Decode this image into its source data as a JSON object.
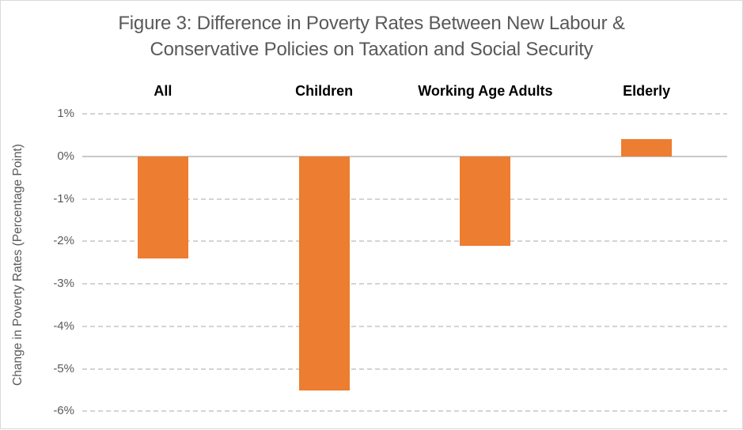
{
  "figure": {
    "title_line1": "Figure 3: Difference in Poverty Rates Between New Labour &",
    "title_line2": "Conservative Policies on Taxation and Social Security"
  },
  "chart_data": {
    "type": "bar",
    "title": "Figure 3: Difference in Poverty Rates Between New Labour & Conservative Policies on Taxation and Social Security",
    "categories": [
      "All",
      "Children",
      "Working Age Adults",
      "Elderly"
    ],
    "values": [
      -2.4,
      -5.5,
      -2.1,
      0.4
    ],
    "xlabel": "",
    "ylabel": "Change in Poverty Rates (Percentage Point)",
    "ylim": [
      1,
      -6
    ],
    "yticks": [
      1,
      0,
      -1,
      -2,
      -3,
      -4,
      -5,
      -6
    ],
    "ytick_labels": [
      "1%",
      "0%",
      "-1%",
      "-2%",
      "-3%",
      "-4%",
      "-5%",
      "-6%"
    ],
    "grid": "horizontal-dashed",
    "zero_line": "solid",
    "legend_position": "none",
    "bar_color": "#ED7D31",
    "axis_text_color": "#595959",
    "category_text_color": "#000000",
    "gridline_color": "#d5d3d3",
    "zero_line_color": "#c9c7c7"
  }
}
